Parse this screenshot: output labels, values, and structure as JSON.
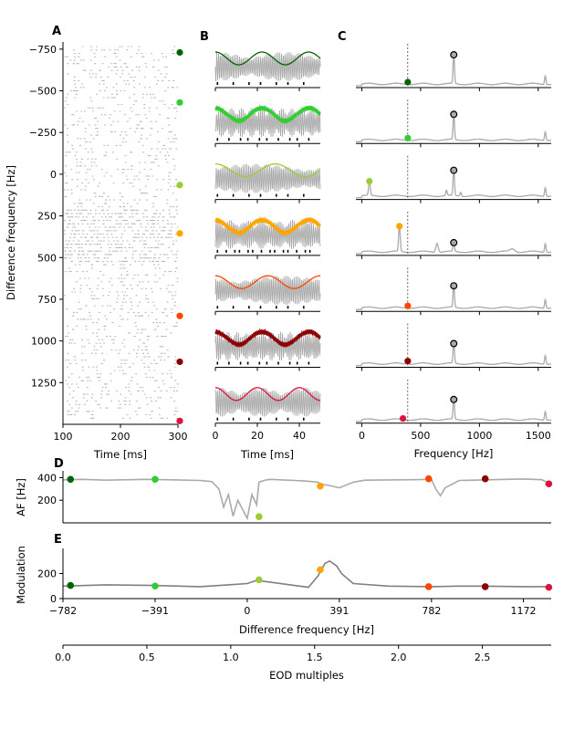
{
  "panels": [
    "A",
    "B",
    "C",
    "D",
    "E"
  ],
  "colors": [
    "#006400",
    "#32cd32",
    "#9acd32",
    "#ffa500",
    "#ff4500",
    "#8b0000",
    "#dc143c"
  ],
  "chart_data": [
    {
      "panel": "A",
      "type": "scatter",
      "xlabel": "Time [ms]",
      "ylabel": "Difference frequency [Hz]",
      "xlim": [
        100,
        300
      ],
      "ylim": [
        1500,
        -782
      ],
      "xticks": [
        100,
        200,
        300
      ],
      "yticks": [
        -750,
        -500,
        -250,
        0,
        250,
        500,
        750,
        1000,
        1250
      ],
      "marker_levels": [
        -730,
        -430,
        65,
        355,
        850,
        1125,
        1480
      ]
    },
    {
      "panel": "B",
      "type": "line",
      "xlabel": "Time [ms]",
      "xlim": [
        0,
        50
      ],
      "xticks": [
        0,
        20,
        40
      ],
      "rows": 7,
      "beat_frequencies": [
        0.12,
        0.85,
        0.08,
        0.55,
        0.09,
        0.95,
        0.2
      ]
    },
    {
      "panel": "C",
      "type": "line",
      "xlabel": "Frequency [Hz]",
      "xlim": [
        -50,
        1610
      ],
      "xticks": [
        0,
        500,
        1000,
        1500
      ],
      "eod_frequency": 391,
      "rows": [
        {
          "peak_colored": [
            391,
            0.1
          ],
          "peak_open": [
            782,
            0.85
          ]
        },
        {
          "peak_colored": [
            391,
            0.1
          ],
          "peak_open": [
            782,
            0.75
          ]
        },
        {
          "peak_colored": [
            65,
            0.45
          ],
          "peak_open": [
            782,
            0.75
          ]
        },
        {
          "peak_colored": [
            320,
            0.75
          ],
          "peak_open": [
            782,
            0.3
          ]
        },
        {
          "peak_colored": [
            391,
            0.1
          ],
          "peak_open": [
            782,
            0.65
          ]
        },
        {
          "peak_colored": [
            391,
            0.12
          ],
          "peak_open": [
            782,
            0.6
          ]
        },
        {
          "peak_colored": [
            350,
            0.08
          ],
          "peak_open": [
            782,
            0.6
          ]
        }
      ]
    },
    {
      "panel": "D",
      "type": "line",
      "ylabel": "AF [Hz]",
      "xlim": [
        -782,
        1290
      ],
      "ylim": [
        0,
        460
      ],
      "yticks": [
        200,
        400
      ],
      "x": [
        -782,
        -700,
        -600,
        -500,
        -430,
        -391,
        -300,
        -200,
        -150,
        -120,
        -100,
        -80,
        -60,
        -40,
        -20,
        0,
        20,
        40,
        50,
        80,
        100,
        150,
        200,
        250,
        300,
        310,
        350,
        391,
        450,
        500,
        600,
        700,
        782,
        800,
        820,
        840,
        900,
        1000,
        1100,
        1172,
        1250,
        1290
      ],
      "y": [
        380,
        385,
        378,
        382,
        385,
        383,
        380,
        375,
        365,
        300,
        140,
        250,
        60,
        200,
        120,
        40,
        250,
        160,
        360,
        380,
        385,
        380,
        375,
        370,
        360,
        345,
        330,
        310,
        360,
        378,
        380,
        382,
        385,
        300,
        240,
        310,
        375,
        380,
        385,
        388,
        382,
        340
      ],
      "markers_x": [
        -750,
        -391,
        50,
        310,
        770,
        1010,
        1280
      ],
      "markers_y": [
        385,
        385,
        55,
        325,
        390,
        390,
        345
      ]
    },
    {
      "panel": "E",
      "type": "line",
      "ylabel": "Modulation",
      "xlabel": "Difference frequency [Hz]",
      "xlim": [
        -782,
        1290
      ],
      "ylim": [
        0,
        400
      ],
      "yticks": [
        0,
        200
      ],
      "xticks": [
        -782,
        -391,
        0,
        391,
        782,
        1172
      ],
      "x": [
        -782,
        -600,
        -400,
        -200,
        -80,
        0,
        40,
        100,
        200,
        260,
        300,
        330,
        350,
        380,
        400,
        450,
        600,
        782,
        900,
        1000,
        1172,
        1290
      ],
      "y": [
        100,
        110,
        105,
        95,
        110,
        120,
        145,
        130,
        105,
        90,
        180,
        280,
        300,
        260,
        200,
        120,
        100,
        95,
        100,
        100,
        95,
        95
      ],
      "markers_x": [
        -750,
        -391,
        50,
        310,
        770,
        1010,
        1280
      ],
      "markers_y": [
        105,
        100,
        150,
        230,
        95,
        95,
        90
      ],
      "secondary_xlabel": "EOD multiples",
      "secondary_xticks": [
        "0.0",
        "0.5",
        "1.0",
        "1.5",
        "2.0",
        "2.5"
      ]
    }
  ]
}
